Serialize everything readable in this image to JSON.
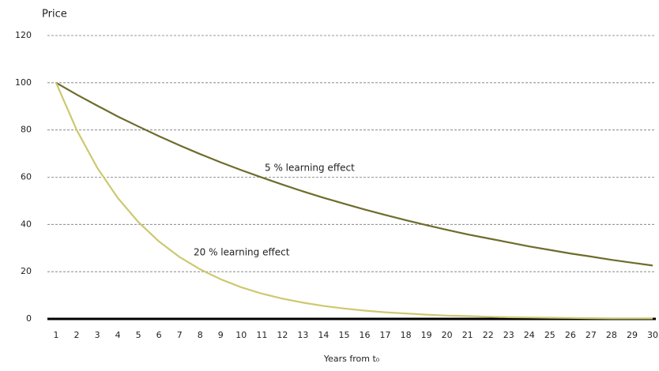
{
  "chart_data": {
    "type": "line",
    "y_label": "Price",
    "x_label": "Years from t₀",
    "categories": [
      1,
      2,
      3,
      4,
      5,
      6,
      7,
      8,
      9,
      10,
      11,
      12,
      13,
      14,
      15,
      16,
      17,
      18,
      19,
      20,
      21,
      22,
      23,
      24,
      25,
      26,
      27,
      28,
      29,
      30
    ],
    "series": [
      {
        "name": "5 % learning effect",
        "color": "#6e6c2c",
        "values": [
          100,
          95,
          90.3,
          85.7,
          81.5,
          77.4,
          73.5,
          69.8,
          66.3,
          63,
          59.9,
          56.9,
          54,
          51.3,
          48.8,
          46.3,
          44,
          41.8,
          39.7,
          37.7,
          35.8,
          34.1,
          32.4,
          30.7,
          29.2,
          27.7,
          26.4,
          25,
          23.8,
          22.6
        ]
      },
      {
        "name": "20 % learning effect",
        "color": "#cdc870",
        "values": [
          100,
          80,
          64,
          51.2,
          41,
          32.8,
          26.2,
          21,
          16.8,
          13.4,
          10.7,
          8.6,
          6.9,
          5.5,
          4.4,
          3.5,
          2.8,
          2.3,
          1.8,
          1.4,
          1.2,
          0.9,
          0.7,
          0.6,
          0.5,
          0.4,
          0.3,
          0.2,
          0.2,
          0.2
        ]
      }
    ],
    "ylim": [
      0,
      120
    ],
    "yticks": [
      0,
      20,
      40,
      60,
      80,
      100,
      120
    ],
    "grid": true
  }
}
